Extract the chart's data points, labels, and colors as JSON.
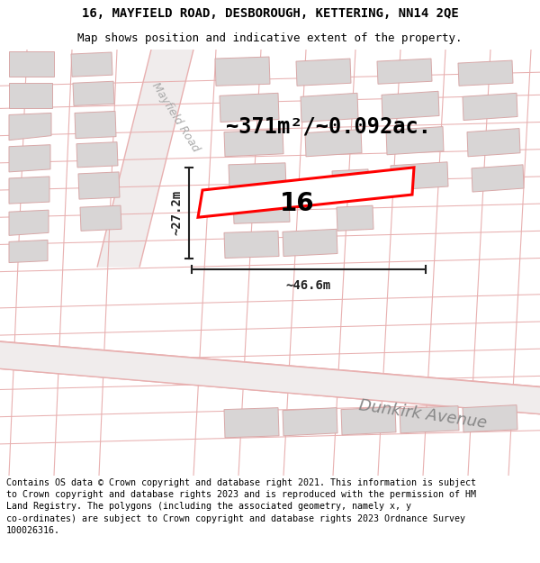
{
  "title_line1": "16, MAYFIELD ROAD, DESBOROUGH, KETTERING, NN14 2QE",
  "title_line2": "Map shows position and indicative extent of the property.",
  "area_text": "~371m²/~0.092ac.",
  "width_label": "~46.6m",
  "height_label": "~27.2m",
  "property_number": "16",
  "street_label": "Dunkirk Avenue",
  "road_label": "Mayfield Road",
  "footer_text": "Contains OS data © Crown copyright and database right 2021. This information is subject to Crown copyright and database rights 2023 and is reproduced with the permission of HM Land Registry. The polygons (including the associated geometry, namely x, y co-ordinates) are subject to Crown copyright and database rights 2023 Ordnance Survey 100026316.",
  "map_bg": "#f7f4f4",
  "building_fill": "#d8d5d5",
  "building_edge": "#d8a8a8",
  "road_line": "#e8b0b0",
  "property_edge": "#ff0000",
  "property_fill": "#ffffff",
  "dim_color": "#222222",
  "title_fontsize": 10,
  "subtitle_fontsize": 9,
  "area_fontsize": 17,
  "label_fontsize": 10,
  "number_fontsize": 20,
  "street_fontsize": 13,
  "road_label_fontsize": 9,
  "footer_fontsize": 7.2
}
